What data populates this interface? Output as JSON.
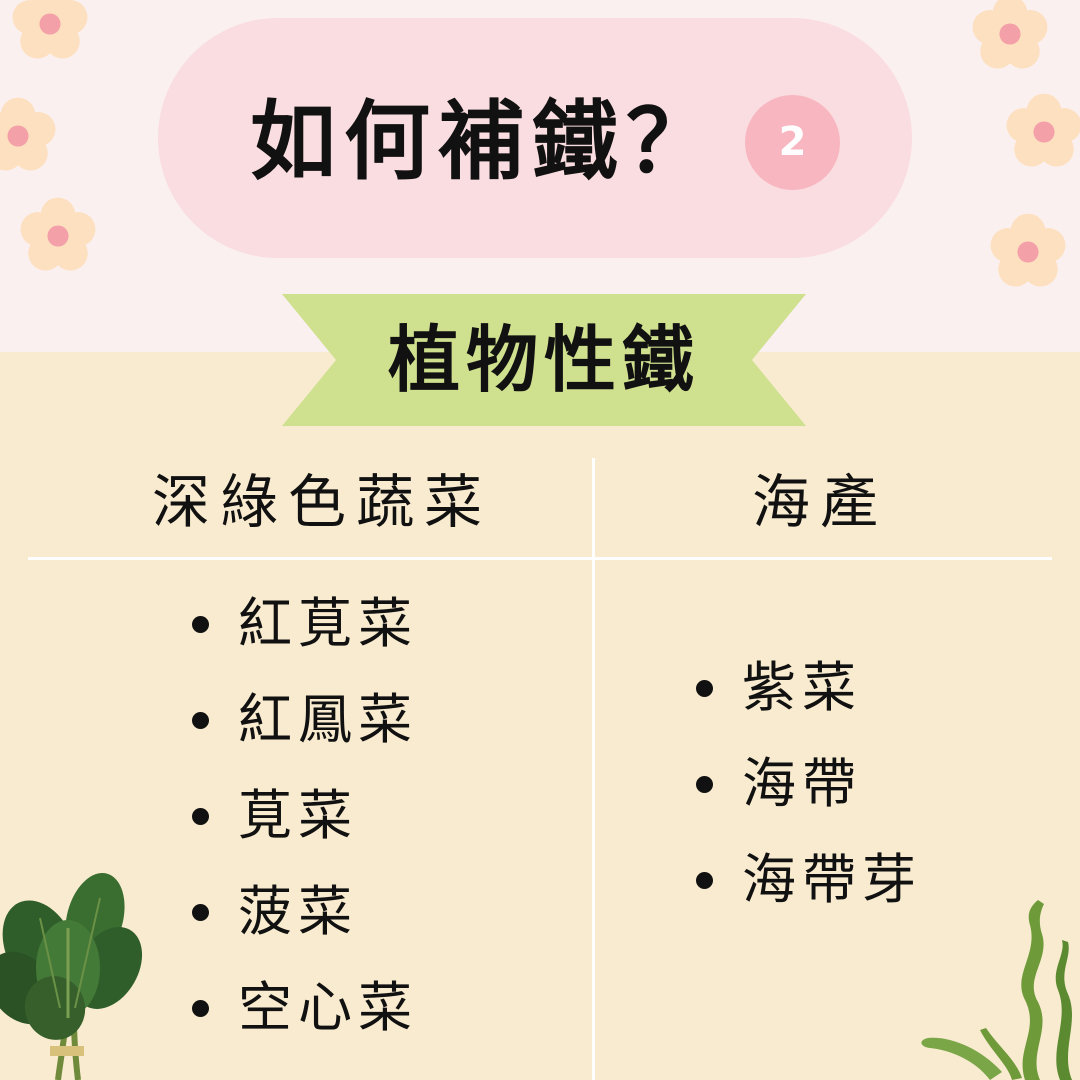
{
  "title": "如何補鐵？",
  "badge": "2",
  "banner": "植物性鐵",
  "columns": [
    {
      "heading": "深綠色蔬菜",
      "items": [
        "紅莧菜",
        "紅鳳菜",
        "莧菜",
        "菠菜",
        "空心菜"
      ]
    },
    {
      "heading": "海產",
      "items": [
        "紫菜",
        "海帶",
        "海帶芽"
      ]
    }
  ],
  "colors": {
    "top_background": "#fbf0f0",
    "bottom_background": "#f8ebcf",
    "title_pill": "#fadde0",
    "badge": "#f8b6c0",
    "banner": "#cfe08f",
    "flower_petal": "#fde0c0",
    "flower_center": "#f4a0a8"
  },
  "icons": [
    "flower-icon",
    "spinach-icon",
    "seaweed-icon"
  ]
}
